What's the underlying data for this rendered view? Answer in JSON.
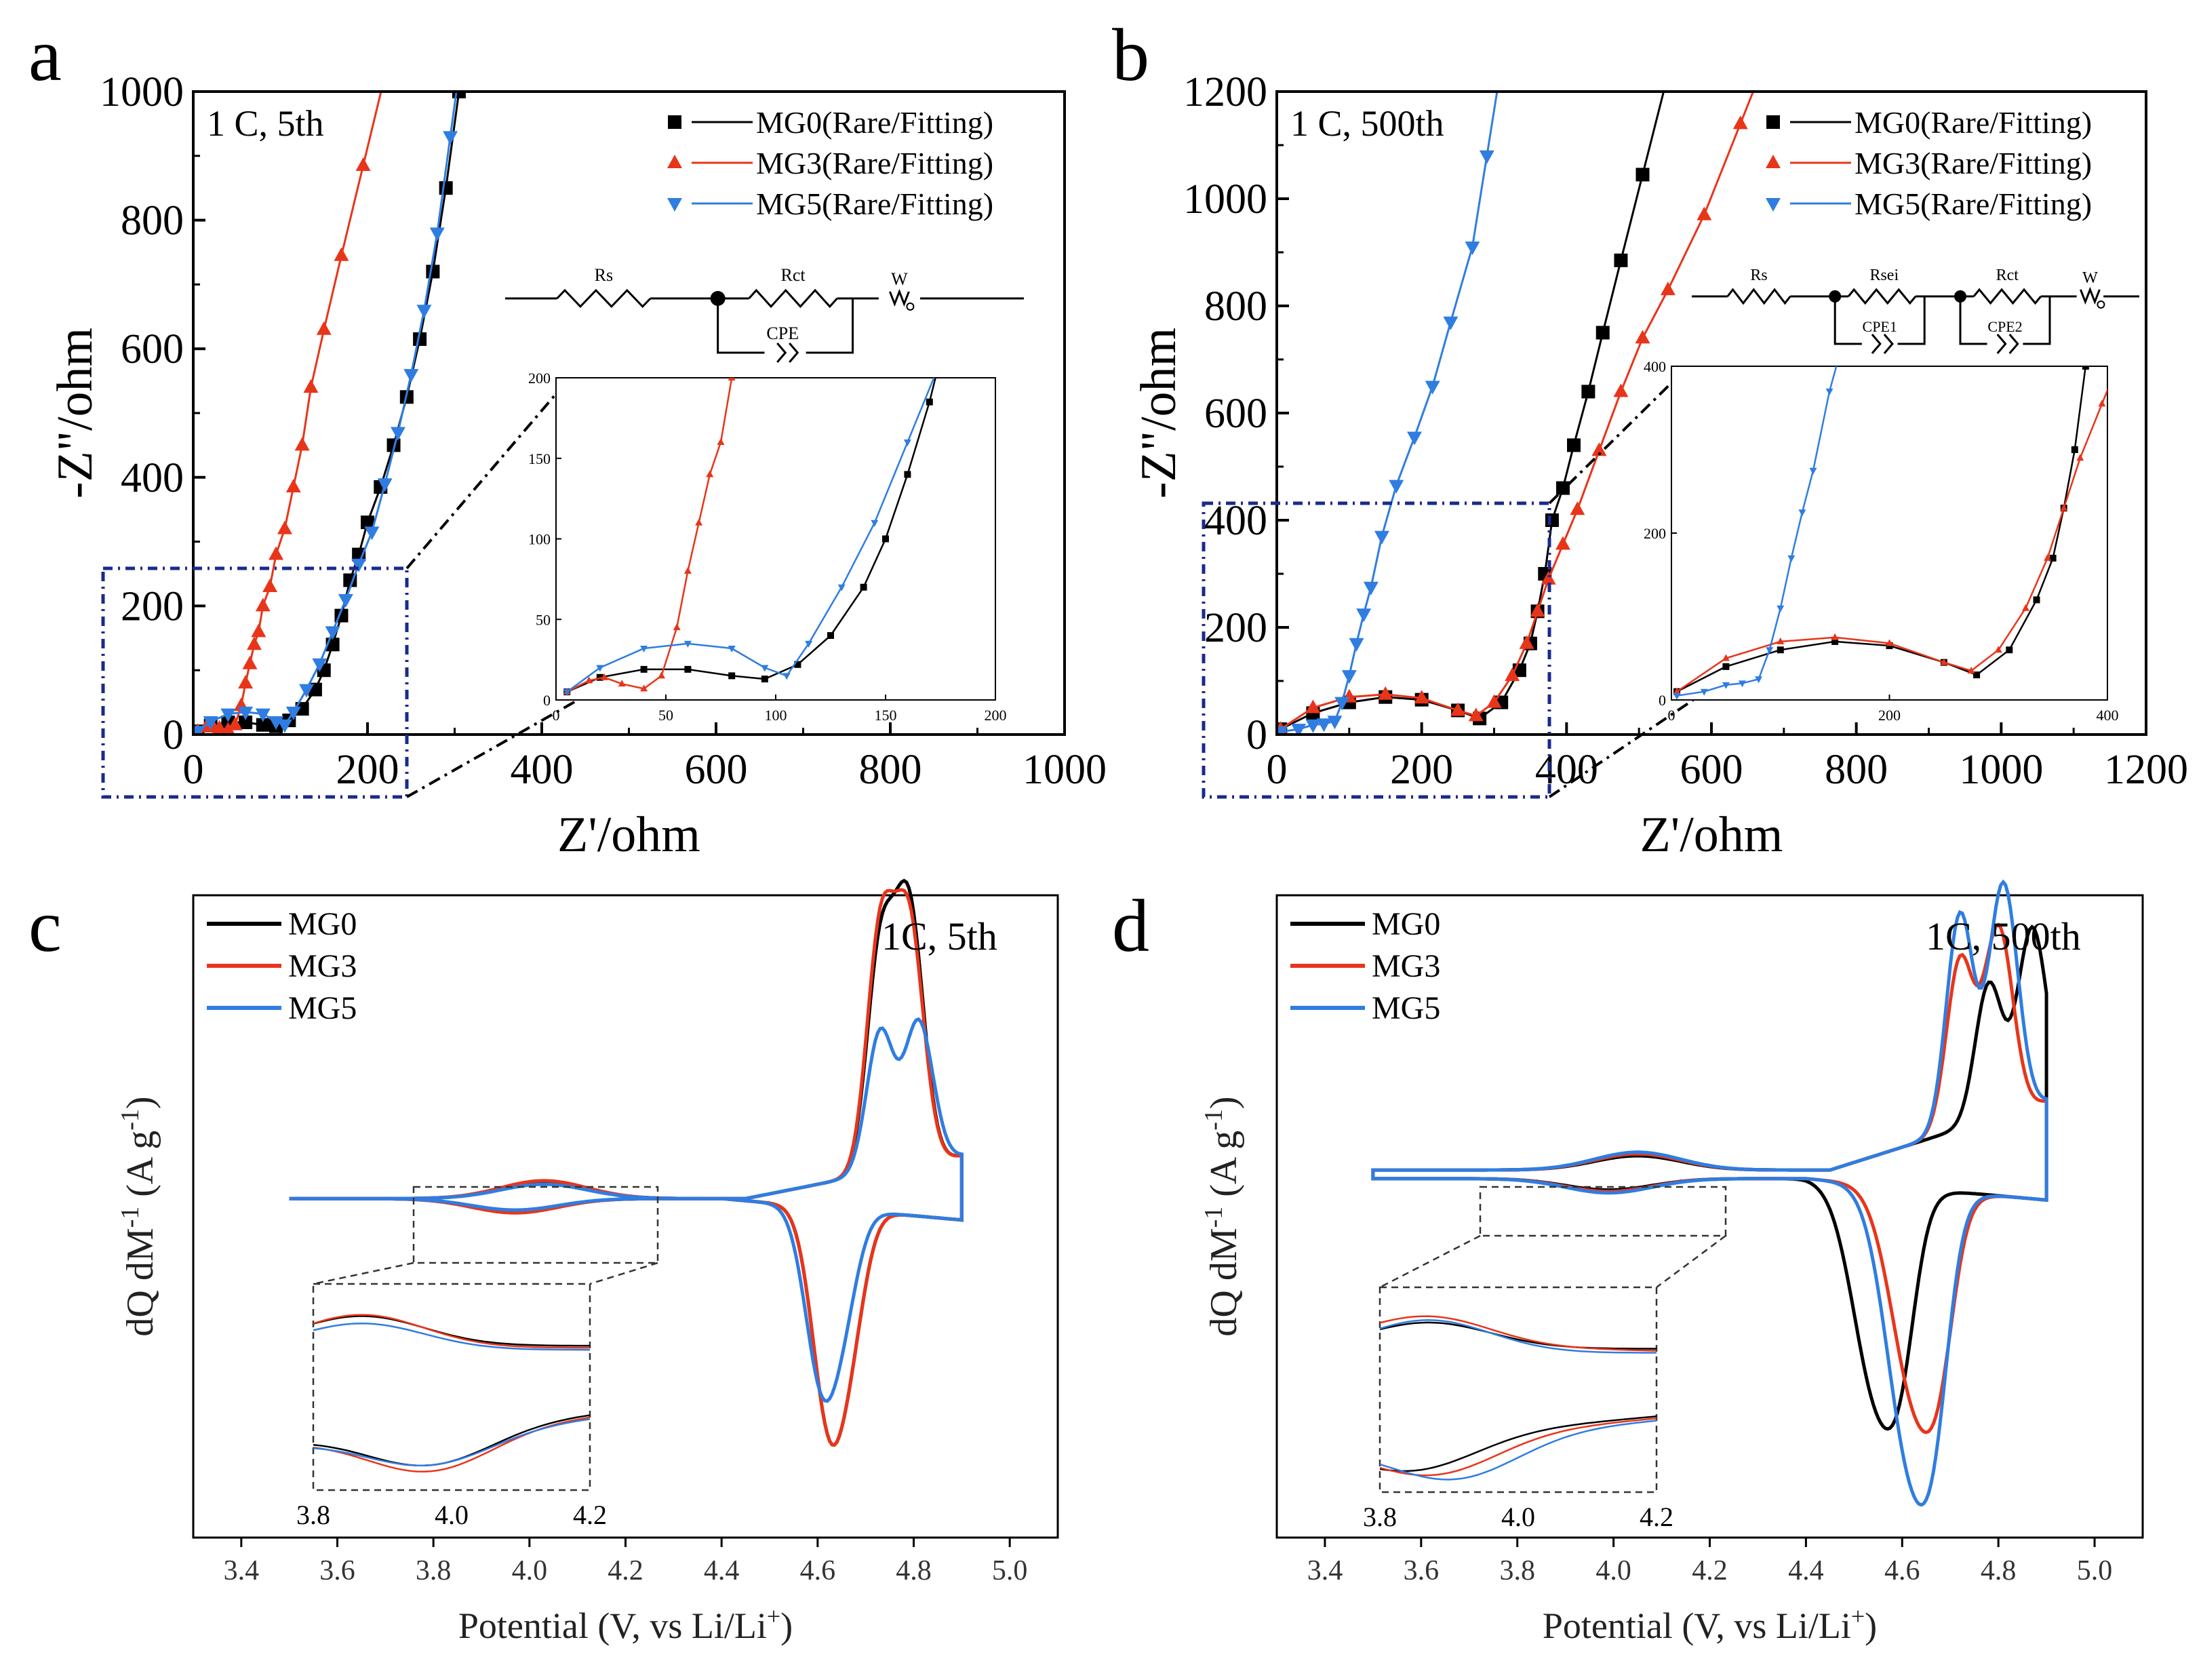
{
  "colors": {
    "MG0": "#000000",
    "MG3": "#e8351a",
    "MG5": "#2f7de1",
    "box": "#1a2a8c"
  },
  "chart_data": [
    {
      "type": "scatter",
      "panel": "a",
      "condition": "1 C, 5th",
      "xlabel": "Z'/ohm",
      "ylabel": "-Z\"/ohm",
      "xlim": [
        0,
        1000
      ],
      "ylim": [
        0,
        1000
      ],
      "xticks": [
        "0",
        "200",
        "400",
        "600",
        "800",
        "1000"
      ],
      "yticks": [
        "0",
        "200",
        "400",
        "600",
        "800",
        "1000"
      ],
      "legend": [
        "MG0(Rare/Fitting)",
        "MG3(Rare/Fitting)",
        "MG5(Rare/Fitting)"
      ],
      "series": [
        {
          "name": "MG0",
          "points": [
            [
              5,
              5
            ],
            [
              20,
              14
            ],
            [
              40,
              19
            ],
            [
              60,
              19
            ],
            [
              80,
              15
            ],
            [
              95,
              13
            ],
            [
              110,
              22
            ],
            [
              125,
              40
            ],
            [
              140,
              70
            ],
            [
              150,
              100
            ],
            [
              160,
              140
            ],
            [
              170,
              185
            ],
            [
              180,
              240
            ],
            [
              190,
              280
            ],
            [
              200,
              330
            ],
            [
              215,
              385
            ],
            [
              230,
              450
            ],
            [
              245,
              525
            ],
            [
              260,
              615
            ],
            [
              275,
              720
            ],
            [
              290,
              850
            ],
            [
              305,
              1000
            ]
          ]
        },
        {
          "name": "MG3",
          "points": [
            [
              5,
              5
            ],
            [
              15,
              12
            ],
            [
              22,
              14
            ],
            [
              30,
              10
            ],
            [
              40,
              7
            ],
            [
              48,
              15
            ],
            [
              55,
              45
            ],
            [
              60,
              80
            ],
            [
              65,
              110
            ],
            [
              70,
              140
            ],
            [
              75,
              160
            ],
            [
              80,
              200
            ],
            [
              88,
              230
            ],
            [
              95,
              280
            ],
            [
              105,
              320
            ],
            [
              115,
              385
            ],
            [
              125,
              450
            ],
            [
              135,
              540
            ],
            [
              150,
              630
            ],
            [
              170,
              745
            ],
            [
              195,
              885
            ]
          ]
        },
        {
          "name": "MG5",
          "points": [
            [
              5,
              5
            ],
            [
              20,
              20
            ],
            [
              40,
              32
            ],
            [
              60,
              35
            ],
            [
              80,
              32
            ],
            [
              95,
              20
            ],
            [
              105,
              15
            ],
            [
              115,
              35
            ],
            [
              130,
              70
            ],
            [
              145,
              110
            ],
            [
              160,
              160
            ],
            [
              175,
              210
            ],
            [
              190,
              265
            ],
            [
              205,
              315
            ],
            [
              220,
              390
            ],
            [
              235,
              470
            ],
            [
              250,
              560
            ],
            [
              265,
              660
            ],
            [
              280,
              780
            ],
            [
              295,
              930
            ]
          ]
        }
      ],
      "inset": {
        "xlim": [
          0,
          200
        ],
        "ylim": [
          0,
          200
        ],
        "xticks": [
          "0",
          "50",
          "100",
          "150",
          "200"
        ],
        "yticks": [
          "0",
          "50",
          "100",
          "150",
          "200"
        ],
        "circuit": [
          "Rs",
          "Rct",
          "W",
          "CPE"
        ]
      }
    },
    {
      "type": "scatter",
      "panel": "b",
      "condition": "1 C, 500th",
      "xlabel": "Z'/ohm",
      "ylabel": "-Z\"/ohm",
      "xlim": [
        0,
        1200
      ],
      "ylim": [
        0,
        1200
      ],
      "xticks": [
        "0",
        "200",
        "400",
        "600",
        "800",
        "1000",
        "1200"
      ],
      "yticks": [
        "0",
        "200",
        "400",
        "600",
        "800",
        "1000",
        "1200"
      ],
      "legend": [
        "MG0(Rare/Fitting)",
        "MG3(Rare/Fitting)",
        "MG5(Rare/Fitting)"
      ],
      "series": [
        {
          "name": "MG0",
          "points": [
            [
              5,
              10
            ],
            [
              50,
              40
            ],
            [
              100,
              60
            ],
            [
              150,
              70
            ],
            [
              200,
              65
            ],
            [
              250,
              45
            ],
            [
              280,
              30
            ],
            [
              310,
              60
            ],
            [
              335,
              120
            ],
            [
              350,
              170
            ],
            [
              360,
              230
            ],
            [
              370,
              300
            ],
            [
              380,
              400
            ],
            [
              395,
              460
            ],
            [
              410,
              540
            ],
            [
              430,
              640
            ],
            [
              450,
              750
            ],
            [
              475,
              885
            ],
            [
              505,
              1045
            ]
          ]
        },
        {
          "name": "MG3",
          "points": [
            [
              5,
              10
            ],
            [
              50,
              50
            ],
            [
              100,
              70
            ],
            [
              150,
              75
            ],
            [
              200,
              68
            ],
            [
              250,
              45
            ],
            [
              275,
              35
            ],
            [
              300,
              60
            ],
            [
              325,
              110
            ],
            [
              345,
              170
            ],
            [
              360,
              230
            ],
            [
              375,
              290
            ],
            [
              395,
              355
            ],
            [
              415,
              420
            ],
            [
              445,
              530
            ],
            [
              475,
              640
            ],
            [
              505,
              740
            ],
            [
              540,
              830
            ],
            [
              590,
              970
            ],
            [
              640,
              1140
            ]
          ]
        },
        {
          "name": "MG5",
          "points": [
            [
              5,
              5
            ],
            [
              30,
              10
            ],
            [
              50,
              18
            ],
            [
              65,
              20
            ],
            [
              80,
              25
            ],
            [
              90,
              60
            ],
            [
              100,
              110
            ],
            [
              110,
              170
            ],
            [
              120,
              225
            ],
            [
              130,
              275
            ],
            [
              145,
              370
            ],
            [
              165,
              465
            ],
            [
              190,
              555
            ],
            [
              215,
              650
            ],
            [
              240,
              770
            ],
            [
              270,
              910
            ],
            [
              290,
              1080
            ]
          ]
        }
      ],
      "inset": {
        "xlim": [
          0,
          400
        ],
        "ylim": [
          0,
          400
        ],
        "xticks": [
          "0",
          "200",
          "400"
        ],
        "yticks": [
          "0",
          "200",
          "400"
        ],
        "circuit": [
          "Rs",
          "Rsei",
          "Rct",
          "W",
          "CPE1",
          "CPE2"
        ]
      }
    },
    {
      "type": "line",
      "panel": "c",
      "condition": "1C, 5th",
      "xlabel": "Potential (V, vs Li/Li+)",
      "ylabel": "dQ dM-1 (A g-1)",
      "xlim": [
        3.3,
        5.1
      ],
      "xticks": [
        "3.4",
        "3.6",
        "3.8",
        "4.0",
        "4.2",
        "4.4",
        "4.6",
        "4.8",
        "5.0"
      ],
      "legend": [
        "MG0",
        "MG3",
        "MG5"
      ],
      "inset": {
        "xticks": [
          "3.8",
          "4.0",
          "4.2"
        ]
      },
      "series": [
        {
          "name": "MG0",
          "charge_peaks": [
            [
              4.73,
              0.6
            ],
            [
              4.79,
              0.72
            ]
          ],
          "discharge_peak": [
            4.625,
            -0.6
          ],
          "redox_feature": [
            4.03,
            0.045
          ]
        },
        {
          "name": "MG3",
          "charge_peaks": [
            [
              4.73,
              0.65
            ],
            [
              4.79,
              0.68
            ]
          ],
          "discharge_peak": [
            4.625,
            -0.6
          ],
          "redox_feature": [
            4.03,
            0.05
          ]
        },
        {
          "name": "MG5",
          "charge_peaks": [
            [
              4.73,
              0.39
            ],
            [
              4.81,
              0.4
            ]
          ],
          "discharge_peak": [
            4.61,
            -0.49
          ],
          "redox_feature": [
            4.03,
            0.04
          ]
        }
      ]
    },
    {
      "type": "line",
      "panel": "d",
      "condition": "1C, 500th",
      "xlabel": "Potential (V, vs Li/Li+)",
      "ylabel": "dQ dM-1 (A g-1)",
      "xlim": [
        3.3,
        5.1
      ],
      "xticks": [
        "3.4",
        "3.6",
        "3.8",
        "4.0",
        "4.2",
        "4.4",
        "4.6",
        "4.8",
        "5.0"
      ],
      "legend": [
        "MG0",
        "MG3",
        "MG5"
      ],
      "inset": {
        "xticks": [
          "3.8",
          "4.0",
          "4.2"
        ]
      },
      "series": [
        {
          "name": "MG0",
          "charge_peaks": [
            [
              4.78,
              0.38
            ],
            [
              4.87,
              0.5
            ]
          ],
          "discharge_peak": [
            4.55,
            -0.6
          ],
          "redox_feature": [
            4.05,
            0.04
          ]
        },
        {
          "name": "MG3",
          "charge_peaks": [
            [
              4.72,
              0.47
            ],
            [
              4.8,
              0.53
            ]
          ],
          "discharge_peak": [
            4.63,
            -0.6
          ],
          "redox_feature": [
            4.05,
            0.045
          ]
        },
        {
          "name": "MG5",
          "charge_peaks": [
            [
              4.72,
              0.6
            ],
            [
              4.81,
              0.65
            ]
          ],
          "discharge_peak": [
            4.62,
            -0.78
          ],
          "redox_feature": [
            4.05,
            0.05
          ]
        }
      ]
    }
  ],
  "panel_labels": [
    "a",
    "b",
    "c",
    "d"
  ]
}
